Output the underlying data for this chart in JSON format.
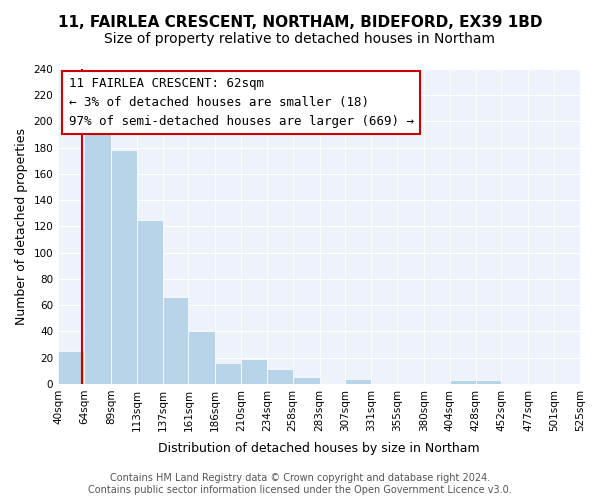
{
  "title1": "11, FAIRLEA CRESCENT, NORTHAM, BIDEFORD, EX39 1BD",
  "title2": "Size of property relative to detached houses in Northam",
  "xlabel": "Distribution of detached houses by size in Northam",
  "ylabel": "Number of detached properties",
  "bin_edges": [
    40,
    64,
    89,
    113,
    137,
    161,
    186,
    210,
    234,
    258,
    283,
    307,
    331,
    355,
    380,
    404,
    428,
    452,
    477,
    501,
    525
  ],
  "bin_counts": [
    25,
    195,
    178,
    125,
    66,
    40,
    16,
    19,
    11,
    5,
    0,
    4,
    0,
    0,
    0,
    3,
    3,
    0,
    0,
    0
  ],
  "bar_color": "#b8d4e8",
  "property_size": 62,
  "vline_color": "#cc0000",
  "box_edge_color": "#cc0000",
  "annotation_box_text": "11 FAIRLEA CRESCENT: 62sqm\n← 3% of detached houses are smaller (18)\n97% of semi-detached houses are larger (669) →",
  "tick_labels": [
    "40sqm",
    "64sqm",
    "89sqm",
    "113sqm",
    "137sqm",
    "161sqm",
    "186sqm",
    "210sqm",
    "234sqm",
    "258sqm",
    "283sqm",
    "307sqm",
    "331sqm",
    "355sqm",
    "380sqm",
    "404sqm",
    "428sqm",
    "452sqm",
    "477sqm",
    "501sqm",
    "525sqm"
  ],
  "ylim": [
    0,
    240
  ],
  "yticks": [
    0,
    20,
    40,
    60,
    80,
    100,
    120,
    140,
    160,
    180,
    200,
    220,
    240
  ],
  "background_color": "#eef2fa",
  "footer_text": "Contains HM Land Registry data © Crown copyright and database right 2024.\nContains public sector information licensed under the Open Government Licence v3.0.",
  "title1_fontsize": 11,
  "title2_fontsize": 10,
  "xlabel_fontsize": 9,
  "ylabel_fontsize": 9,
  "tick_fontsize": 7.5,
  "annotation_fontsize": 9,
  "footer_fontsize": 7
}
